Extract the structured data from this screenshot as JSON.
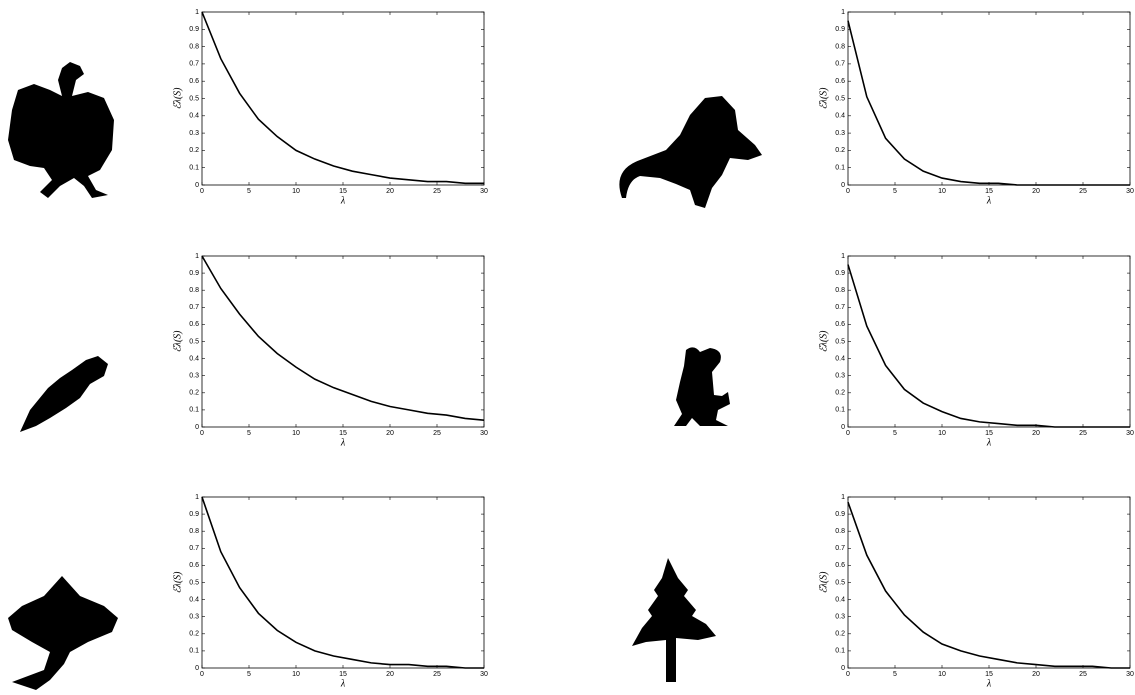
{
  "chart_data": [
    {
      "type": "line",
      "xlabel": "λ",
      "ylabel": "ℰλ(S)",
      "x": [
        0,
        2,
        4,
        6,
        8,
        10,
        12,
        14,
        16,
        18,
        20,
        22,
        24,
        26,
        28,
        30
      ],
      "values": [
        1,
        0.73,
        0.53,
        0.38,
        0.28,
        0.2,
        0.15,
        0.11,
        0.08,
        0.06,
        0.04,
        0.03,
        0.02,
        0.02,
        0.01,
        0.01
      ],
      "color": "#000000",
      "xlim": [
        0,
        30
      ],
      "ylim": [
        0,
        1
      ],
      "xticks": [
        0,
        5,
        10,
        15,
        20,
        25,
        30
      ],
      "yticks": [
        0,
        0.1,
        0.2,
        0.3,
        0.4,
        0.5,
        0.6,
        0.7,
        0.8,
        0.9,
        1
      ]
    },
    {
      "type": "line",
      "xlabel": "λ",
      "ylabel": "ℰλ(S)",
      "x": [
        0,
        2,
        4,
        6,
        8,
        10,
        12,
        14,
        16,
        18,
        20,
        22,
        24,
        26,
        28,
        30
      ],
      "values": [
        0.95,
        0.51,
        0.27,
        0.15,
        0.08,
        0.04,
        0.02,
        0.01,
        0.01,
        0,
        0,
        0,
        0,
        0,
        0,
        0
      ],
      "color": "#000000",
      "xlim": [
        0,
        30
      ],
      "ylim": [
        0,
        1
      ],
      "xticks": [
        0,
        5,
        10,
        15,
        20,
        25,
        30
      ],
      "yticks": [
        0,
        0.1,
        0.2,
        0.3,
        0.4,
        0.5,
        0.6,
        0.7,
        0.8,
        0.9,
        1
      ]
    },
    {
      "type": "line",
      "xlabel": "λ",
      "ylabel": "ℰλ(S)",
      "x": [
        0,
        2,
        4,
        6,
        8,
        10,
        12,
        14,
        16,
        18,
        20,
        22,
        24,
        26,
        28,
        30
      ],
      "values": [
        1,
        0.81,
        0.66,
        0.53,
        0.43,
        0.35,
        0.28,
        0.23,
        0.19,
        0.15,
        0.12,
        0.1,
        0.08,
        0.07,
        0.05,
        0.04
      ],
      "color": "#000000",
      "xlim": [
        0,
        30
      ],
      "ylim": [
        0,
        1
      ],
      "xticks": [
        0,
        5,
        10,
        15,
        20,
        25,
        30
      ],
      "yticks": [
        0,
        0.1,
        0.2,
        0.3,
        0.4,
        0.5,
        0.6,
        0.7,
        0.8,
        0.9,
        1
      ]
    },
    {
      "type": "line",
      "xlabel": "λ",
      "ylabel": "ℰλ(S)",
      "x": [
        0,
        2,
        4,
        6,
        8,
        10,
        12,
        14,
        16,
        18,
        20,
        22,
        24,
        26,
        28,
        30
      ],
      "values": [
        0.95,
        0.59,
        0.36,
        0.22,
        0.14,
        0.09,
        0.05,
        0.03,
        0.02,
        0.01,
        0.01,
        0,
        0,
        0,
        0,
        0
      ],
      "color": "#000000",
      "xlim": [
        0,
        30
      ],
      "ylim": [
        0,
        1
      ],
      "xticks": [
        0,
        5,
        10,
        15,
        20,
        25,
        30
      ],
      "yticks": [
        0,
        0.1,
        0.2,
        0.3,
        0.4,
        0.5,
        0.6,
        0.7,
        0.8,
        0.9,
        1
      ]
    },
    {
      "type": "line",
      "xlabel": "λ",
      "ylabel": "ℰλ(S)",
      "x": [
        0,
        2,
        4,
        6,
        8,
        10,
        12,
        14,
        16,
        18,
        20,
        22,
        24,
        26,
        28,
        30
      ],
      "values": [
        1,
        0.68,
        0.47,
        0.32,
        0.22,
        0.15,
        0.1,
        0.07,
        0.05,
        0.03,
        0.02,
        0.02,
        0.01,
        0.01,
        0,
        0
      ],
      "color": "#000000",
      "xlim": [
        0,
        30
      ],
      "ylim": [
        0,
        1
      ],
      "xticks": [
        0,
        5,
        10,
        15,
        20,
        25,
        30
      ],
      "yticks": [
        0,
        0.1,
        0.2,
        0.3,
        0.4,
        0.5,
        0.6,
        0.7,
        0.8,
        0.9,
        1
      ]
    },
    {
      "type": "line",
      "xlabel": "λ",
      "ylabel": "ℰλ(S)",
      "x": [
        0,
        2,
        4,
        6,
        8,
        10,
        12,
        14,
        16,
        18,
        20,
        22,
        24,
        26,
        28,
        30
      ],
      "values": [
        0.97,
        0.66,
        0.45,
        0.31,
        0.21,
        0.14,
        0.1,
        0.07,
        0.05,
        0.03,
        0.02,
        0.01,
        0.01,
        0.01,
        0,
        0
      ],
      "color": "#000000",
      "xlim": [
        0,
        30
      ],
      "ylim": [
        0,
        1
      ],
      "xticks": [
        0,
        5,
        10,
        15,
        20,
        25,
        30
      ],
      "yticks": [
        0,
        0.1,
        0.2,
        0.3,
        0.4,
        0.5,
        0.6,
        0.7,
        0.8,
        0.9,
        1
      ]
    }
  ]
}
